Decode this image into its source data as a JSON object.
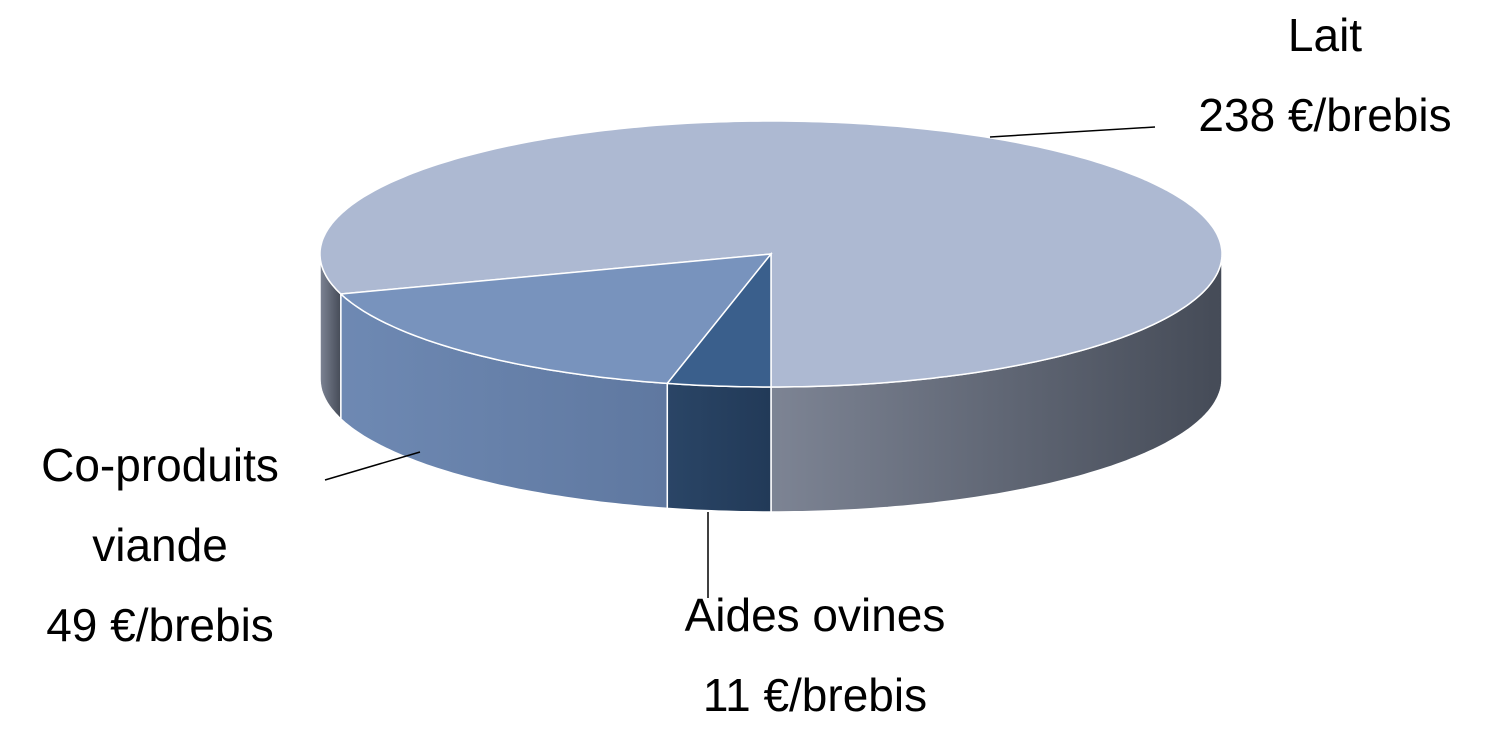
{
  "chart_data": {
    "type": "pie",
    "categories": [
      "Lait",
      "Co-produits viande",
      "Aides ovines"
    ],
    "values": [
      238,
      49,
      11
    ],
    "value_labels": [
      "238 €/brebis",
      "49 €/brebis",
      "11 €/brebis"
    ],
    "colors": [
      "#adb9d2",
      "#7893bd",
      "#3a5f8c"
    ],
    "side_colors": [
      [
        "#7d8494",
        "#454b57"
      ],
      [
        "#6e89b3",
        "#5f78a0"
      ],
      [
        "#2a4566",
        "#223a58"
      ]
    ]
  }
}
